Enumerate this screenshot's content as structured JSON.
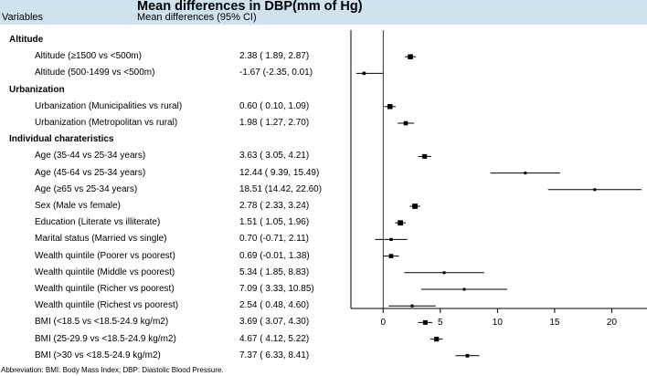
{
  "chart_data": {
    "type": "forest",
    "title": "Mean differences in DBP(mm of Hg)",
    "columns": {
      "variables": "Variables",
      "estimate": "Mean differences (95% CI)"
    },
    "xlim": [
      -2.5,
      23
    ],
    "xticks": [
      0,
      5,
      10,
      15,
      20
    ],
    "reference_line": 0,
    "rows": [
      {
        "group": "Altitude"
      },
      {
        "label": "Altitude (≥1500 vs <500m)",
        "text": "2.38 ( 1.89, 2.87)",
        "est": 2.38,
        "lo": 1.89,
        "hi": 2.87
      },
      {
        "label": "Altitude (500-1499 vs <500m)",
        "text": "-1.67 (-2.35, 0.01)",
        "est": -1.67,
        "lo": -2.35,
        "hi": 0.01
      },
      {
        "group": "Urbanization"
      },
      {
        "label": "Urbanization (Municipalities vs rural)",
        "text": "0.60 ( 0.10, 1.09)",
        "est": 0.6,
        "lo": 0.1,
        "hi": 1.09
      },
      {
        "label": "Urbanization (Metropolitan  vs rural)",
        "text": "1.98 ( 1.27, 2.70)",
        "est": 1.98,
        "lo": 1.27,
        "hi": 2.7
      },
      {
        "group": "Individual charateristics"
      },
      {
        "label": "Age (35-44 vs 25-34 years)",
        "text": "3.63 ( 3.05, 4.21)",
        "est": 3.63,
        "lo": 3.05,
        "hi": 4.21
      },
      {
        "label": "Age (45-64 vs 25-34 years)",
        "text": "12.44 ( 9.39, 15.49)",
        "est": 12.44,
        "lo": 9.39,
        "hi": 15.49
      },
      {
        "label": "Age (≥65 vs 25-34 years)",
        "text": "18.51 (14.42, 22.60)",
        "est": 18.51,
        "lo": 14.42,
        "hi": 22.6
      },
      {
        "label": "Sex (Male vs female)",
        "text": "2.78 ( 2.33, 3.24)",
        "est": 2.78,
        "lo": 2.33,
        "hi": 3.24
      },
      {
        "label": "Education (Literate vs illiterate)",
        "text": "1.51 ( 1.05, 1.96)",
        "est": 1.51,
        "lo": 1.05,
        "hi": 1.96
      },
      {
        "label": "Marital status (Married vs single)",
        "text": "0.70 (-0.71, 2.11)",
        "est": 0.7,
        "lo": -0.71,
        "hi": 2.11
      },
      {
        "label": "Wealth quintile (Poorer vs poorest)",
        "text": "0.69 (-0.01, 1.38)",
        "est": 0.69,
        "lo": -0.01,
        "hi": 1.38
      },
      {
        "label": "Wealth quintile (Middle vs poorest)",
        "text": "5.34 ( 1.85, 8.83)",
        "est": 5.34,
        "lo": 1.85,
        "hi": 8.83
      },
      {
        "label": "Wealth quintile (Richer vs poorest)",
        "text": "7.09 ( 3.33, 10.85)",
        "est": 7.09,
        "lo": 3.33,
        "hi": 10.85
      },
      {
        "label": "Wealth quintile (Richest vs poorest)",
        "text": "2.54 ( 0.48, 4.60)",
        "est": 2.54,
        "lo": 0.48,
        "hi": 4.6
      },
      {
        "label": "BMI (<18.5 vs <18.5-24.9 kg/m2)",
        "text": "3.69 ( 3.07, 4.30)",
        "est": 3.69,
        "lo": 3.07,
        "hi": 4.3
      },
      {
        "label": "BMI (25-29.9 vs <18.5-24.9 kg/m2)",
        "text": "4.67 ( 4.12, 5.22)",
        "est": 4.67,
        "lo": 4.12,
        "hi": 5.22
      },
      {
        "label": "BMI (>30 vs <18.5-24.9 kg/m2)",
        "text": "7.37 ( 6.33, 8.41)",
        "est": 7.37,
        "lo": 6.33,
        "hi": 8.41
      }
    ]
  },
  "footnote": "Abbreviation: BMI: Body Mass Index; DBP: Diastolic Blood Pressure.",
  "colors": {
    "header_bg": "#cfe3ef",
    "ink": "#000000",
    "axis": "#000000"
  }
}
